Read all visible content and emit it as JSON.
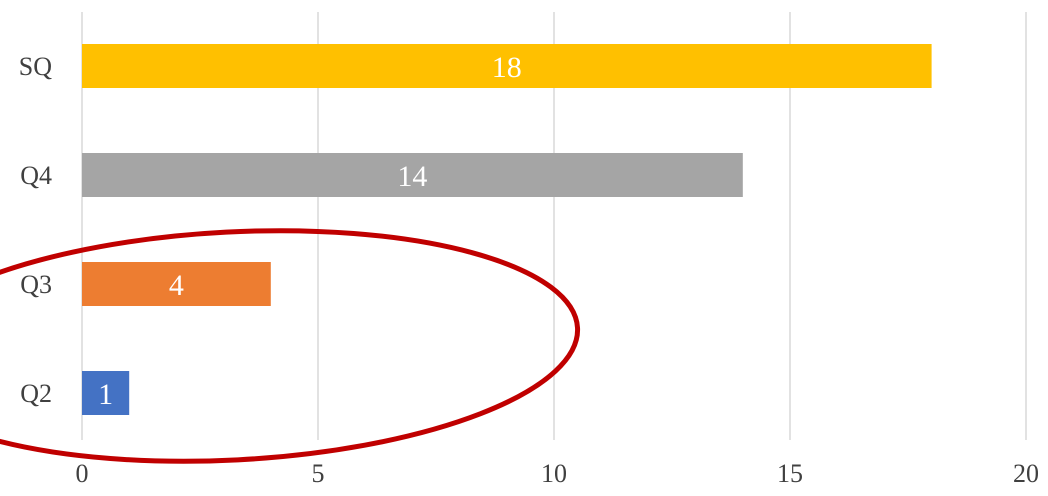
{
  "chart_data": {
    "type": "bar",
    "orientation": "horizontal",
    "categories": [
      "SQ",
      "Q4",
      "Q3",
      "Q2"
    ],
    "values": [
      18,
      14,
      4,
      1
    ],
    "data_labels": [
      "18",
      "14",
      "4",
      "1"
    ],
    "colors": [
      "#FFC000",
      "#A5A5A5",
      "#ED7D31",
      "#4472C4"
    ],
    "x_ticks": [
      "0",
      "5",
      "10",
      "15",
      "20"
    ],
    "xlim": [
      0,
      20
    ],
    "grid": "vertical",
    "annotation": {
      "shape": "ellipse",
      "color": "#C00000",
      "encloses": [
        "Q3",
        "Q2"
      ]
    }
  }
}
